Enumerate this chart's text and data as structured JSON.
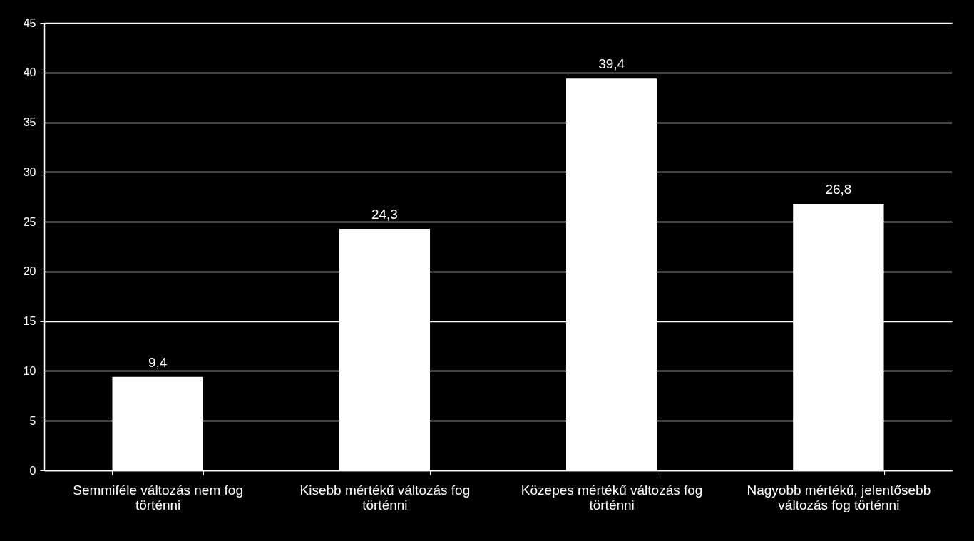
{
  "chart_data": {
    "type": "bar",
    "categories": [
      "Semmiféle változás nem fog történni",
      "Kisebb mértékű változás fog történni",
      "Közepes mértékű változás fog történni",
      "Nagyobb mértékű, jelentősebb változás fog történni"
    ],
    "values": [
      9.4,
      24.3,
      39.4,
      26.8
    ],
    "value_labels": [
      "9,4",
      "24,3",
      "39,4",
      "26,8"
    ],
    "color": "#ffffff",
    "ylim": [
      0,
      45
    ],
    "yticks": [
      0,
      5,
      10,
      15,
      20,
      25,
      30,
      35,
      40,
      45
    ],
    "grid": "y"
  }
}
